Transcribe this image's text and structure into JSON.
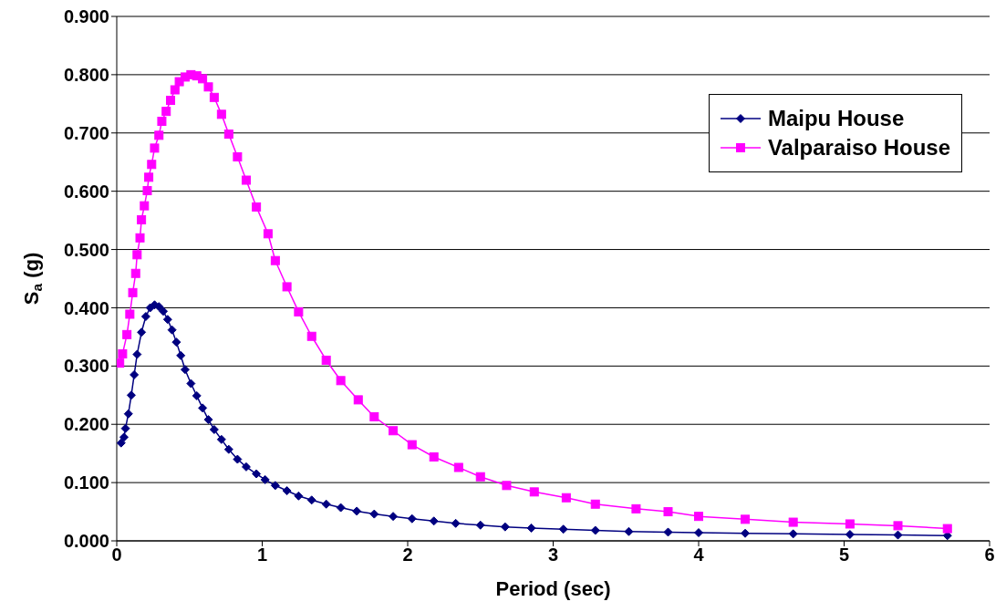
{
  "chart_data": {
    "type": "line",
    "xlabel": "Period (sec)",
    "ylabel": "S$_{a}$ (g)",
    "xlim": [
      0,
      6
    ],
    "xticks": [
      0,
      1,
      2,
      3,
      4,
      5,
      6
    ],
    "ylim": [
      0,
      0.9
    ],
    "yticks": [
      {
        "value": 0,
        "label": "0.000"
      },
      {
        "value": 0.1,
        "label": "0.100"
      },
      {
        "value": 0.2,
        "label": "0.200"
      },
      {
        "value": 0.3,
        "label": "0.300"
      },
      {
        "value": 0.4,
        "label": "0.400"
      },
      {
        "value": 0.5,
        "label": "0.500"
      },
      {
        "value": 0.6,
        "label": "0.600"
      },
      {
        "value": 0.7,
        "label": "0.700"
      },
      {
        "value": 0.8,
        "label": "0.800"
      },
      {
        "value": 0.9,
        "label": "0.900"
      }
    ],
    "grid": "y",
    "legend": "top right",
    "line_style": "solid",
    "series": [
      {
        "name": "Maipu House",
        "color": "#000080",
        "marker": "diamond",
        "x": [
          0.03,
          0.05,
          0.06,
          0.08,
          0.1,
          0.12,
          0.14,
          0.17,
          0.2,
          0.23,
          0.26,
          0.29,
          0.32,
          0.35,
          0.38,
          0.41,
          0.44,
          0.47,
          0.51,
          0.55,
          0.59,
          0.63,
          0.67,
          0.72,
          0.77,
          0.83,
          0.89,
          0.96,
          1.02,
          1.09,
          1.17,
          1.25,
          1.34,
          1.44,
          1.54,
          1.65,
          1.77,
          1.9,
          2.03,
          2.18,
          2.33,
          2.5,
          2.67,
          2.85,
          3.07,
          3.29,
          3.52,
          3.79,
          4.0,
          4.32,
          4.65,
          5.04,
          5.37,
          5.71
        ],
        "values": [
          0.168,
          0.178,
          0.193,
          0.218,
          0.25,
          0.285,
          0.32,
          0.358,
          0.385,
          0.4,
          0.405,
          0.402,
          0.394,
          0.38,
          0.362,
          0.341,
          0.318,
          0.294,
          0.27,
          0.249,
          0.228,
          0.208,
          0.191,
          0.174,
          0.157,
          0.14,
          0.127,
          0.115,
          0.105,
          0.095,
          0.086,
          0.077,
          0.07,
          0.063,
          0.057,
          0.051,
          0.046,
          0.042,
          0.038,
          0.034,
          0.03,
          0.027,
          0.024,
          0.022,
          0.02,
          0.018,
          0.016,
          0.015,
          0.014,
          0.013,
          0.012,
          0.011,
          0.01,
          0.009
        ]
      },
      {
        "name": "Valparaiso House",
        "color": "#ff00ff",
        "marker": "square",
        "x": [
          0.02,
          0.04,
          0.07,
          0.09,
          0.11,
          0.13,
          0.14,
          0.16,
          0.17,
          0.19,
          0.21,
          0.22,
          0.24,
          0.26,
          0.29,
          0.31,
          0.34,
          0.37,
          0.4,
          0.43,
          0.47,
          0.51,
          0.55,
          0.59,
          0.63,
          0.67,
          0.72,
          0.77,
          0.83,
          0.89,
          0.96,
          1.04,
          1.09,
          1.17,
          1.25,
          1.34,
          1.44,
          1.54,
          1.66,
          1.77,
          1.9,
          2.03,
          2.18,
          2.35,
          2.5,
          2.68,
          2.87,
          3.09,
          3.29,
          3.57,
          3.79,
          4.0,
          4.32,
          4.65,
          5.04,
          5.37,
          5.71
        ],
        "values": [
          0.305,
          0.321,
          0.354,
          0.389,
          0.426,
          0.459,
          0.491,
          0.52,
          0.551,
          0.575,
          0.601,
          0.624,
          0.646,
          0.674,
          0.696,
          0.72,
          0.737,
          0.756,
          0.774,
          0.788,
          0.796,
          0.8,
          0.798,
          0.793,
          0.779,
          0.761,
          0.732,
          0.698,
          0.659,
          0.619,
          0.573,
          0.527,
          0.481,
          0.436,
          0.393,
          0.351,
          0.31,
          0.275,
          0.242,
          0.213,
          0.189,
          0.165,
          0.144,
          0.126,
          0.11,
          0.095,
          0.084,
          0.074,
          0.063,
          0.055,
          0.05,
          0.042,
          0.037,
          0.032,
          0.029,
          0.026,
          0.021
        ]
      }
    ]
  }
}
